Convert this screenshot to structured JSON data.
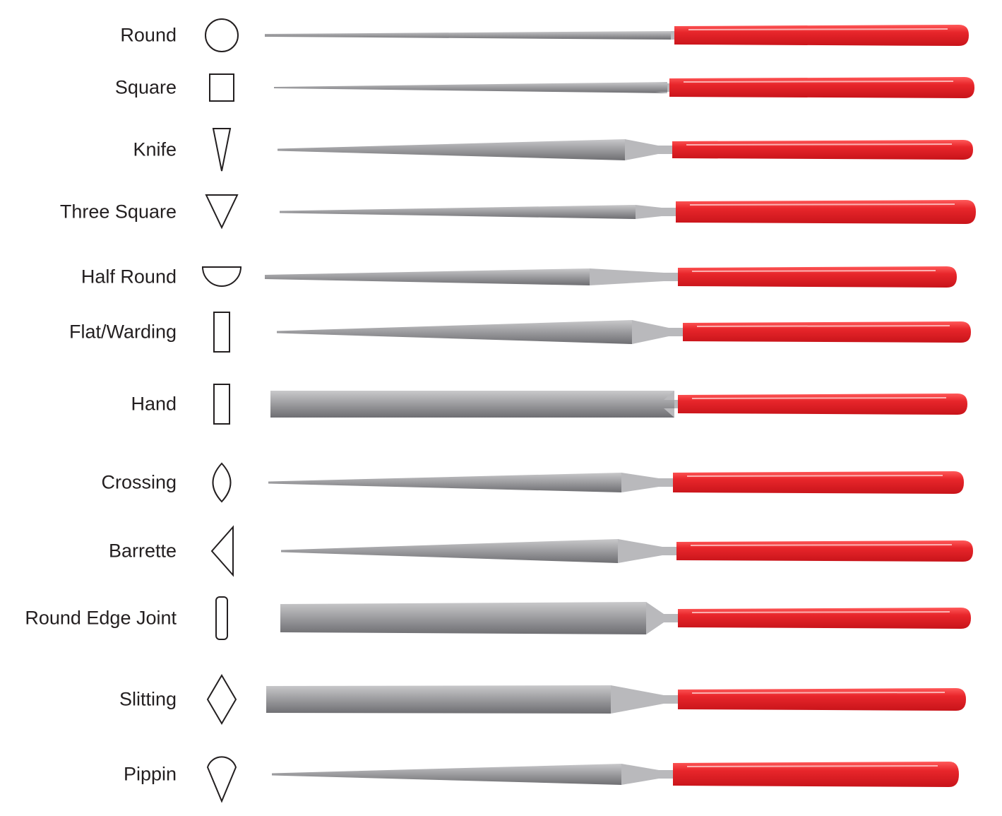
{
  "colors": {
    "handle": "#e8262b",
    "blade": "#9a9a9c",
    "outline": "#231f20",
    "text": "#231f20"
  },
  "files": [
    {
      "label": "Round",
      "cross_section": "circle-icon"
    },
    {
      "label": "Square",
      "cross_section": "square-icon"
    },
    {
      "label": "Knife",
      "cross_section": "narrow-triangle-icon"
    },
    {
      "label": "Three Square",
      "cross_section": "triangle-down-icon"
    },
    {
      "label": "Half Round",
      "cross_section": "half-circle-icon"
    },
    {
      "label": "Flat/Warding",
      "cross_section": "tall-rectangle-icon"
    },
    {
      "label": "Hand",
      "cross_section": "tall-rectangle-icon"
    },
    {
      "label": "Crossing",
      "cross_section": "lens-icon"
    },
    {
      "label": "Barrette",
      "cross_section": "triangle-left-icon"
    },
    {
      "label": "Round Edge Joint",
      "cross_section": "rounded-rectangle-icon"
    },
    {
      "label": "Slitting",
      "cross_section": "diamond-icon"
    },
    {
      "label": "Pippin",
      "cross_section": "teardrop-icon"
    }
  ]
}
